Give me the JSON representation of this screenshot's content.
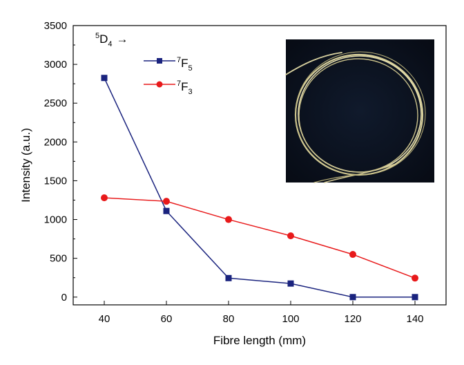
{
  "chart_data": {
    "type": "line",
    "xlabel": "Fibre length (mm)",
    "ylabel": "Intensity (a.u.)",
    "xlim": [
      30,
      150
    ],
    "ylim": [
      -100,
      3500
    ],
    "x_ticks": [
      40,
      60,
      80,
      100,
      120,
      140
    ],
    "y_ticks": [
      0,
      500,
      1000,
      1500,
      2000,
      2500,
      3000,
      3500
    ],
    "x": [
      40,
      60,
      80,
      100,
      120,
      140
    ],
    "legend": {
      "title_sup": "5",
      "title_base": "D",
      "title_sub": "4",
      "title_arrow": "→",
      "placement": "top-left"
    },
    "series": [
      {
        "label_sup": "7",
        "label_base": "F",
        "label_sub": "5",
        "color": "#1a237e",
        "marker": "square",
        "values": [
          2825,
          1110,
          245,
          175,
          0,
          0
        ]
      },
      {
        "label_sup": "7",
        "label_base": "F",
        "label_sub": "3",
        "color": "#e8191a",
        "marker": "circle",
        "values": [
          1280,
          1235,
          1000,
          790,
          550,
          245
        ]
      }
    ],
    "grid": false,
    "inset": "photograph of a coiled optical fibre glowing on a dark background, top-right"
  }
}
